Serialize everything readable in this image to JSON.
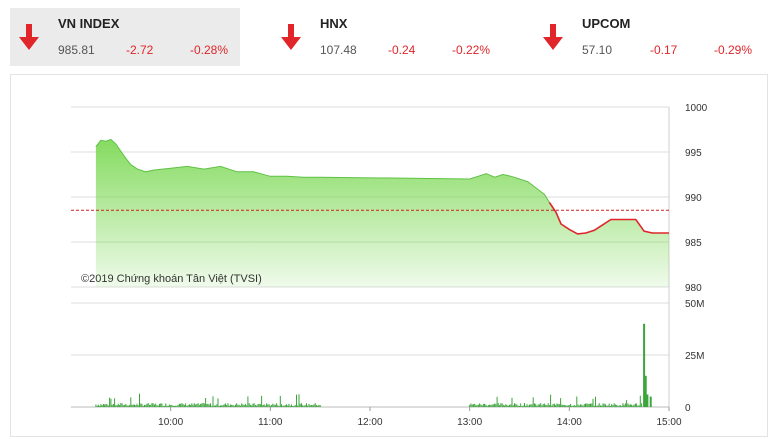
{
  "tickers": [
    {
      "name": "VN INDEX",
      "value": "985.81",
      "change": "-2.72",
      "percent": "-0.28%",
      "icon": "down-arrow-icon"
    },
    {
      "name": "HNX",
      "value": "107.48",
      "change": "-0.24",
      "percent": "-0.22%",
      "icon": "down-arrow-icon"
    },
    {
      "name": "UPCOM",
      "value": "57.10",
      "change": "-0.17",
      "percent": "-0.29%",
      "icon": "down-arrow-icon"
    }
  ],
  "colors": {
    "down": "#e0262a",
    "up_area": "#7ed957",
    "volume": "#3aa53a",
    "reference": "#cc2222"
  },
  "chart_data": {
    "type": "area",
    "watermark": "©2019 Chứng khoán Tân Việt (TVSI)",
    "reference_value": 988.53,
    "price": {
      "ylim": [
        980,
        1000
      ],
      "yticks": [
        1000,
        995,
        990,
        985,
        980
      ],
      "xlim": [
        "09:00",
        "15:00"
      ],
      "xticks": [
        "10:00",
        "11:00",
        "12:00",
        "13:00",
        "14:00",
        "15:00"
      ],
      "x": [
        "09:15",
        "09:18",
        "09:21",
        "09:24",
        "09:27",
        "09:30",
        "09:33",
        "09:36",
        "09:40",
        "09:45",
        "09:50",
        "09:55",
        "10:00",
        "10:10",
        "10:20",
        "10:30",
        "10:40",
        "10:50",
        "11:00",
        "11:10",
        "11:20",
        "11:25",
        "11:30",
        "13:00",
        "13:05",
        "13:10",
        "13:15",
        "13:20",
        "13:25",
        "13:30",
        "13:35",
        "13:40",
        "13:45",
        "13:48",
        "13:52",
        "13:55",
        "14:00",
        "14:05",
        "14:10",
        "14:15",
        "14:20",
        "14:25",
        "14:30",
        "14:35",
        "14:40",
        "14:45",
        "14:50",
        "14:55",
        "15:00"
      ],
      "y": [
        995.6,
        996.3,
        996.2,
        996.4,
        995.9,
        995.1,
        994.3,
        993.6,
        993.1,
        992.8,
        993.0,
        993.1,
        993.2,
        993.4,
        993.1,
        993.4,
        992.8,
        992.8,
        992.3,
        992.3,
        992.2,
        992.2,
        992.2,
        992.0,
        992.3,
        992.6,
        992.2,
        992.5,
        992.3,
        992.0,
        991.7,
        991.0,
        990.3,
        989.4,
        988.3,
        987.0,
        986.4,
        985.9,
        986.0,
        986.3,
        986.9,
        987.5,
        987.5,
        987.5,
        987.5,
        986.2,
        986.0,
        986.0,
        986.0
      ]
    },
    "volume": {
      "ylim": [
        0,
        50
      ],
      "yticks": [
        "50M",
        "25M",
        "0"
      ],
      "unit": "M",
      "x": [
        "14:45",
        "14:46",
        "14:47",
        "14:49"
      ],
      "values": [
        40,
        15,
        6,
        5
      ]
    }
  }
}
